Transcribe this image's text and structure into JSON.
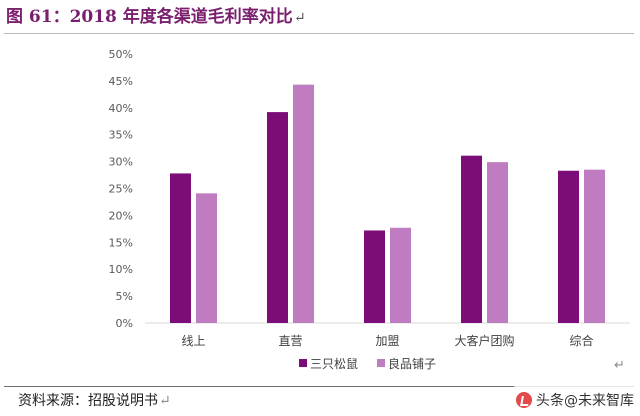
{
  "header": {
    "figure_title": "图 61：2018 年度各渠道毛利率对比",
    "return_mark": "↵"
  },
  "source": {
    "text": "资料来源：招股说明书",
    "return_mark": "↵"
  },
  "watermark": {
    "text": "头条@未来智库",
    "logo_icon": "toutiao-logo-icon"
  },
  "colors": {
    "series_1": "#7b0c78",
    "series_2": "#c07cc0",
    "title": "#7a1f6e",
    "grid": "#d9d9d9",
    "axis_text": "#595959"
  },
  "chart_data": {
    "type": "bar",
    "title": "",
    "xlabel": "",
    "ylabel": "",
    "categories": [
      "线上",
      "直营",
      "加盟",
      "大客户团购",
      "综合"
    ],
    "series": [
      {
        "name": "三只松鼠",
        "values": [
          27.8,
          39.2,
          17.2,
          31.1,
          28.3
        ]
      },
      {
        "name": "良品铺子",
        "values": [
          24.1,
          44.3,
          17.7,
          29.9,
          28.5
        ]
      }
    ],
    "ylim": [
      0,
      50
    ],
    "yticks": [
      "0%",
      "5%",
      "10%",
      "15%",
      "20%",
      "25%",
      "30%",
      "35%",
      "40%",
      "45%",
      "50%"
    ],
    "grid": false,
    "legend_position": "bottom"
  }
}
